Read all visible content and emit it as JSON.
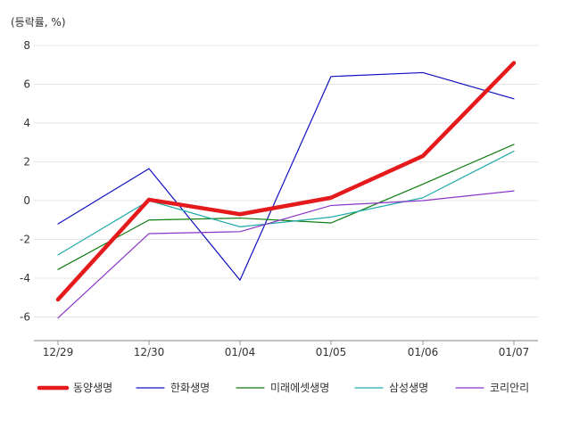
{
  "chart_data": {
    "type": "line",
    "unit_label": "(등락률, %)",
    "categories": [
      "12/29",
      "12/30",
      "01/04",
      "01/05",
      "01/06",
      "01/07"
    ],
    "ylim": [
      -7.2,
      8.5
    ],
    "yticks": [
      8,
      6,
      4,
      2,
      0,
      -2,
      -4,
      -6
    ],
    "grid": true,
    "legend_position": "bottom",
    "series": [
      {
        "name": "동양생명",
        "color": "#e41a1c",
        "width": 4.5,
        "values": [
          -5.1,
          0.05,
          -0.7,
          0.15,
          2.3,
          7.1
        ]
      },
      {
        "name": "한화생명",
        "color": "#1010c0",
        "width": 1.2,
        "values": [
          -1.2,
          1.65,
          -4.1,
          6.4,
          6.6,
          5.25
        ]
      },
      {
        "name": "미래에셋생명",
        "color": "#107c10",
        "width": 1.2,
        "values": [
          -3.55,
          -1.0,
          -0.9,
          -1.15,
          0.85,
          2.9
        ]
      },
      {
        "name": "삼성생명",
        "color": "#20aaaa",
        "width": 1.2,
        "values": [
          -2.8,
          0.0,
          -1.35,
          -0.85,
          0.15,
          2.55
        ]
      },
      {
        "name": "코리안리",
        "color": "#8a35c8",
        "width": 1.2,
        "values": [
          -6.05,
          -1.7,
          -1.6,
          -0.25,
          0.0,
          0.5
        ]
      }
    ]
  }
}
